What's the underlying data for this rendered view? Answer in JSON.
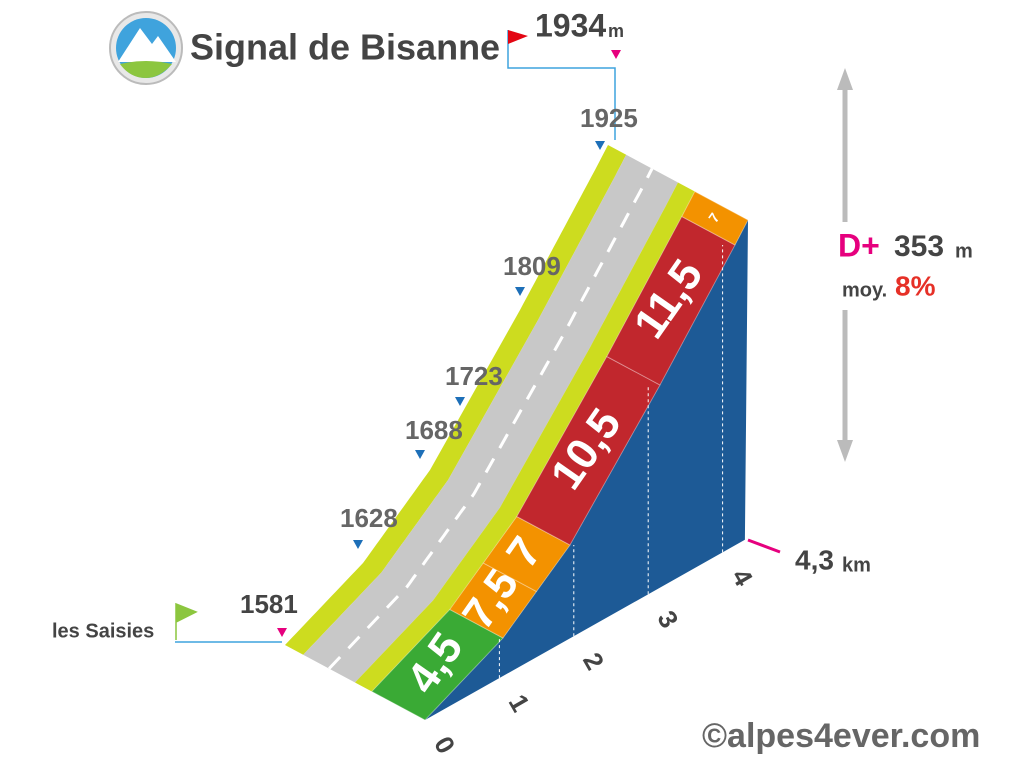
{
  "header": {
    "title": "Signal de Bisanne"
  },
  "summit": {
    "altitude": "1934",
    "unit": "m"
  },
  "start": {
    "name": "les Saisies",
    "altitude": "1581"
  },
  "altitude_marks": [
    "1628",
    "1688",
    "1723",
    "1809",
    "1925"
  ],
  "gradients": [
    "4,5",
    "7,5",
    "7",
    "10,5",
    "11,5",
    "7"
  ],
  "km_ticks": [
    "0",
    "1",
    "2",
    "3",
    "4"
  ],
  "distance": {
    "value": "4,3",
    "unit": "km"
  },
  "elevation_gain": {
    "label": "D+",
    "value": "353",
    "unit": "m"
  },
  "average": {
    "label": "moy.",
    "value": "8%"
  },
  "credit": "©alpes4ever.com"
}
